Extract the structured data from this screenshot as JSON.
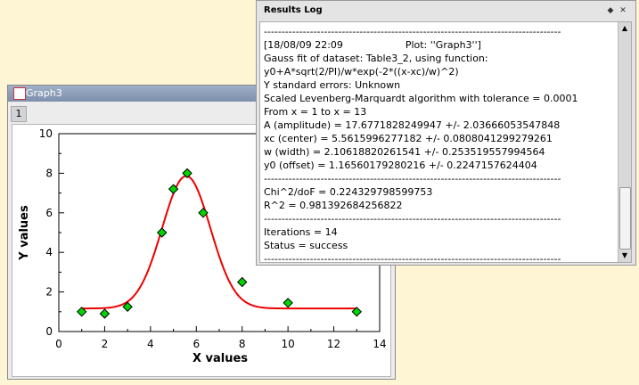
{
  "graph_window": {
    "title": "Graph3",
    "layer_label": "1"
  },
  "chart_data": {
    "type": "scatter",
    "xlabel": "X values",
    "ylabel": "Y values",
    "xlim": [
      0,
      14
    ],
    "ylim": [
      0,
      10
    ],
    "xticks": [
      0,
      2,
      4,
      6,
      8,
      10,
      12,
      14
    ],
    "yticks": [
      0,
      2,
      4,
      6,
      8,
      10
    ],
    "series": [
      {
        "type": "scatter",
        "marker": "diamond",
        "color": "#00d400",
        "x": [
          1,
          2,
          3,
          4.5,
          5,
          5.6,
          6.3,
          8,
          10,
          13
        ],
        "y": [
          1.0,
          0.9,
          1.25,
          5.0,
          7.2,
          8.0,
          6.0,
          2.5,
          1.45,
          1.0
        ]
      },
      {
        "type": "line",
        "color": "#ee0000",
        "function": "gauss",
        "params": {
          "A": 17.6771828249947,
          "xc": 5.5615996277182,
          "w": 2.10618820261541,
          "y0": 1.16560179280216
        },
        "x_range": [
          1,
          13
        ]
      }
    ]
  },
  "results_log": {
    "title": "Results Log",
    "lines": [
      "------------------------------------------------------------------------------------",
      "[18/08/09 22:09                    Plot: ''Graph3'']",
      "Gauss fit of dataset: Table3_2, using function:",
      "y0+A*sqrt(2/PI)/w*exp(-2*((x-xc)/w)^2)",
      "Y standard errors: Unknown",
      "Scaled Levenberg-Marquardt algorithm with tolerance = 0.0001",
      "From x = 1 to x = 13",
      "A (amplitude) = 17.6771828249947 +/- 2.03666053547848",
      "xc (center) = 5.5615996277182 +/- 0.0808041299279261",
      "w (width) = 2.10618820261541 +/- 0.253519557994564",
      "y0 (offset) = 1.16560179280216 +/- 0.2247157624404",
      "------------------------------------------------------------------------------------",
      "Chi^2/doF = 0.224329798599753",
      "R^2 = 0.981392684256822",
      "------------------------------------------------------------------------------------",
      "Iterations = 14",
      "Status = success",
      "------------------------------------------------------------------------------------"
    ]
  },
  "icons": {
    "log_float": "float-icon",
    "log_close": "close-icon",
    "graph_window": "graph-window-icon"
  }
}
